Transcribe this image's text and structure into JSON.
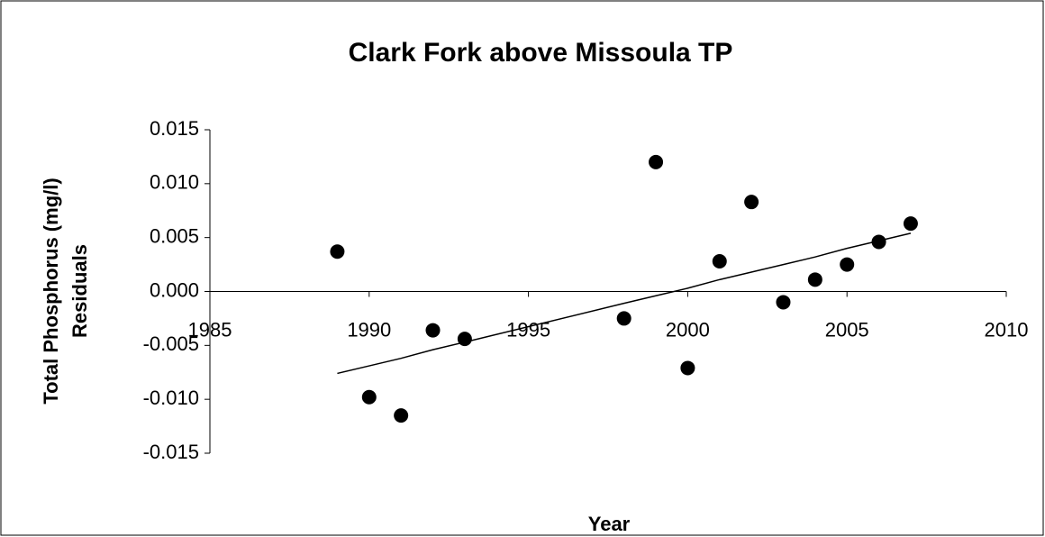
{
  "chart_data": {
    "type": "scatter",
    "title": "Clark Fork above Missoula TP",
    "xlabel": "Year",
    "ylabel": [
      "Total Phosphorus (mg/l)",
      "Residuals"
    ],
    "x": [
      1989,
      1990,
      1991,
      1992,
      1993,
      1998,
      1999,
      2000,
      2001,
      2002,
      2003,
      2004,
      2005,
      2006,
      2007
    ],
    "series": [
      {
        "color": "#000000",
        "mode": "markers",
        "values": [
          0.0037,
          -0.0098,
          -0.0115,
          -0.0036,
          -0.0044,
          -0.0025,
          0.012,
          -0.0071,
          0.0028,
          0.0083,
          -0.001,
          0.0011,
          0.0025,
          0.0046,
          0.0063
        ]
      },
      {
        "color": "#000000",
        "mode": "line",
        "values": [
          -0.0076,
          -0.0069,
          -0.0062,
          -0.0054,
          -0.0047,
          -0.0011,
          -0.0004,
          0.0003,
          0.0011,
          0.0018,
          0.0025,
          0.0032,
          0.004,
          0.0047,
          0.0054
        ]
      }
    ],
    "xlim": [
      1985,
      2010
    ],
    "xticks": [
      1985,
      1990,
      1995,
      2000,
      2005,
      2010
    ],
    "ylim": [
      -0.015,
      0.015
    ],
    "yticks": [
      0.015,
      {
        "value": 0.01,
        "label": "0.010"
      },
      0.005,
      {
        "value": 0,
        "label": "0.000"
      },
      -0.005,
      {
        "value": -0.01,
        "label": "-0.010"
      },
      -0.015
    ],
    "grid": false
  }
}
